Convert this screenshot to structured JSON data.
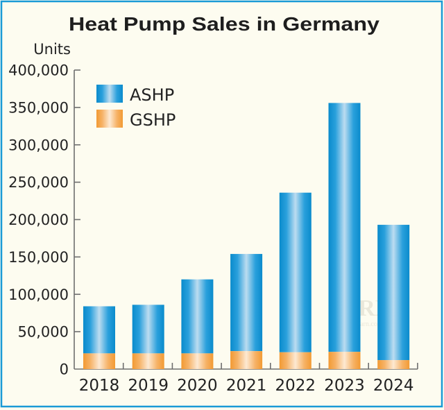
{
  "colors": {
    "background": "#fdfcf0",
    "frame": "#1a9ad6",
    "axis": "#6e6e6e",
    "ashp_edge": "#0a8bcc",
    "ashp_mid": "#2aa0dc",
    "ashp_center": "#bcdcf0",
    "gshp_edge": "#f29a33",
    "gshp_mid": "#f6b266",
    "gshp_center": "#fde9d2",
    "text": "#222222"
  },
  "watermark": {
    "text": "JARN",
    "subtext": "www.ejarn.com"
  },
  "chart_data": {
    "type": "bar",
    "stacked": true,
    "title": "Heat Pump Sales in Germany",
    "xlabel": "",
    "ylabel": "Units",
    "ylim": [
      0,
      400000
    ],
    "yticks": [
      0,
      50000,
      100000,
      150000,
      200000,
      250000,
      300000,
      350000,
      400000
    ],
    "ytick_labels": [
      "0",
      "50,000",
      "100,000",
      "150,000",
      "200,000",
      "250,000",
      "300,000",
      "350,000",
      "400,000"
    ],
    "categories": [
      "2018",
      "2019",
      "2020",
      "2021",
      "2022",
      "2023",
      "2024"
    ],
    "series": [
      {
        "name": "GSHP",
        "key": "gshp",
        "values": [
          21000,
          21000,
          21000,
          24000,
          22500,
          23000,
          12000
        ]
      },
      {
        "name": "ASHP",
        "key": "ashp",
        "values": [
          63000,
          65000,
          99000,
          130000,
          213500,
          333000,
          181000
        ]
      }
    ],
    "totals": [
      84000,
      86000,
      120000,
      154000,
      236000,
      356000,
      193000
    ],
    "legend": {
      "position": "top-left",
      "entries": [
        {
          "name": "ASHP",
          "key": "ashp"
        },
        {
          "name": "GSHP",
          "key": "gshp"
        }
      ]
    },
    "grid": false
  }
}
